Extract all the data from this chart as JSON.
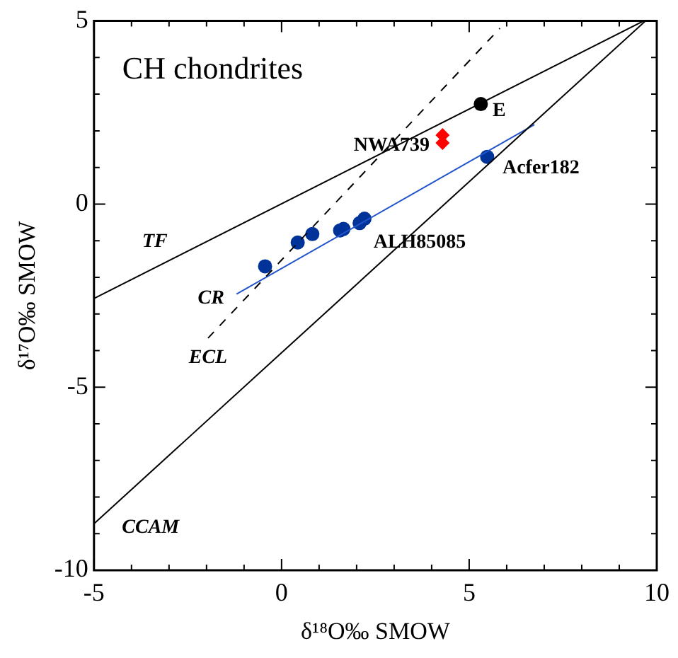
{
  "chart_data": {
    "type": "line",
    "title": "CH chondrites",
    "xlabel": "δ¹⁸O‰ SMOW",
    "ylabel": "δ¹⁷O‰ SMOW",
    "xlim": [
      -5,
      10
    ],
    "ylim": [
      -10,
      5
    ],
    "xticks": [
      -5,
      {
        "value": -4,
        "label": null
      },
      {
        "value": -3,
        "label": null
      },
      {
        "value": -2,
        "label": null
      },
      {
        "value": -1,
        "label": null
      },
      0,
      {
        "value": 1,
        "label": null
      },
      {
        "value": 2,
        "label": null
      },
      {
        "value": 3,
        "label": null
      },
      {
        "value": 4,
        "label": null
      },
      5,
      {
        "value": 6,
        "label": null
      },
      {
        "value": 7,
        "label": null
      },
      {
        "value": 8,
        "label": null
      },
      {
        "value": 9,
        "label": null
      },
      10
    ],
    "yticks": [
      -10,
      {
        "value": -9,
        "label": null
      },
      {
        "value": -8,
        "label": null
      },
      {
        "value": -7,
        "label": null
      },
      {
        "value": -6,
        "label": null
      },
      -5,
      {
        "value": -4,
        "label": null
      },
      {
        "value": -3,
        "label": null
      },
      {
        "value": -2,
        "label": null
      },
      {
        "value": -1,
        "label": null
      },
      0,
      {
        "value": 1,
        "label": null
      },
      {
        "value": 2,
        "label": null
      },
      {
        "value": 3,
        "label": null
      },
      {
        "value": 4,
        "label": null
      },
      5
    ],
    "grid": false,
    "legend": false,
    "series": [
      {
        "name": "TF",
        "color": "#000000",
        "x": [
          -5,
          9.65
        ],
        "values": [
          -2.58,
          5
        ],
        "marker": "none",
        "line_style": "solid"
      },
      {
        "name": "CCAM",
        "color": "#000000",
        "x": [
          -5,
          9.7
        ],
        "values": [
          -8.73,
          5
        ],
        "marker": "none",
        "line_style": "solid"
      },
      {
        "name": "ECL",
        "color": "#000000",
        "x": [
          -1.96,
          5.82
        ],
        "values": [
          -3.66,
          4.8
        ],
        "marker": "none",
        "line_style": "dashed"
      },
      {
        "name": "CR",
        "color": "#2255cc",
        "x": [
          -1.2,
          6.74
        ],
        "values": [
          -2.46,
          2.17
        ],
        "marker": "none",
        "line_style": "solid"
      },
      {
        "type": "scatter",
        "color": "#003399",
        "x": [
          -0.44,
          0.43,
          0.82,
          1.56,
          1.65
        ],
        "values": [
          -1.7,
          -1.05,
          -0.82,
          -0.72,
          -0.68
        ],
        "marker": "circle"
      },
      {
        "type": "scatter",
        "name": "ALH85085",
        "color": "#003399",
        "x": [
          2.08,
          2.21
        ],
        "values": [
          -0.52,
          -0.4
        ],
        "marker": "circle"
      },
      {
        "type": "scatter",
        "name": "Acfer182",
        "color": "#003399",
        "x": [
          5.48
        ],
        "values": [
          1.29
        ],
        "marker": "circle"
      },
      {
        "type": "scatter",
        "name": "NWA739",
        "color": "#ff0000",
        "x": [
          4.29,
          4.29
        ],
        "values": [
          1.88,
          1.67
        ],
        "marker": "diamond"
      },
      {
        "type": "scatter",
        "name": "E",
        "color": "#000000",
        "x": [
          5.31
        ],
        "values": [
          2.73
        ],
        "marker": "circle"
      }
    ]
  }
}
